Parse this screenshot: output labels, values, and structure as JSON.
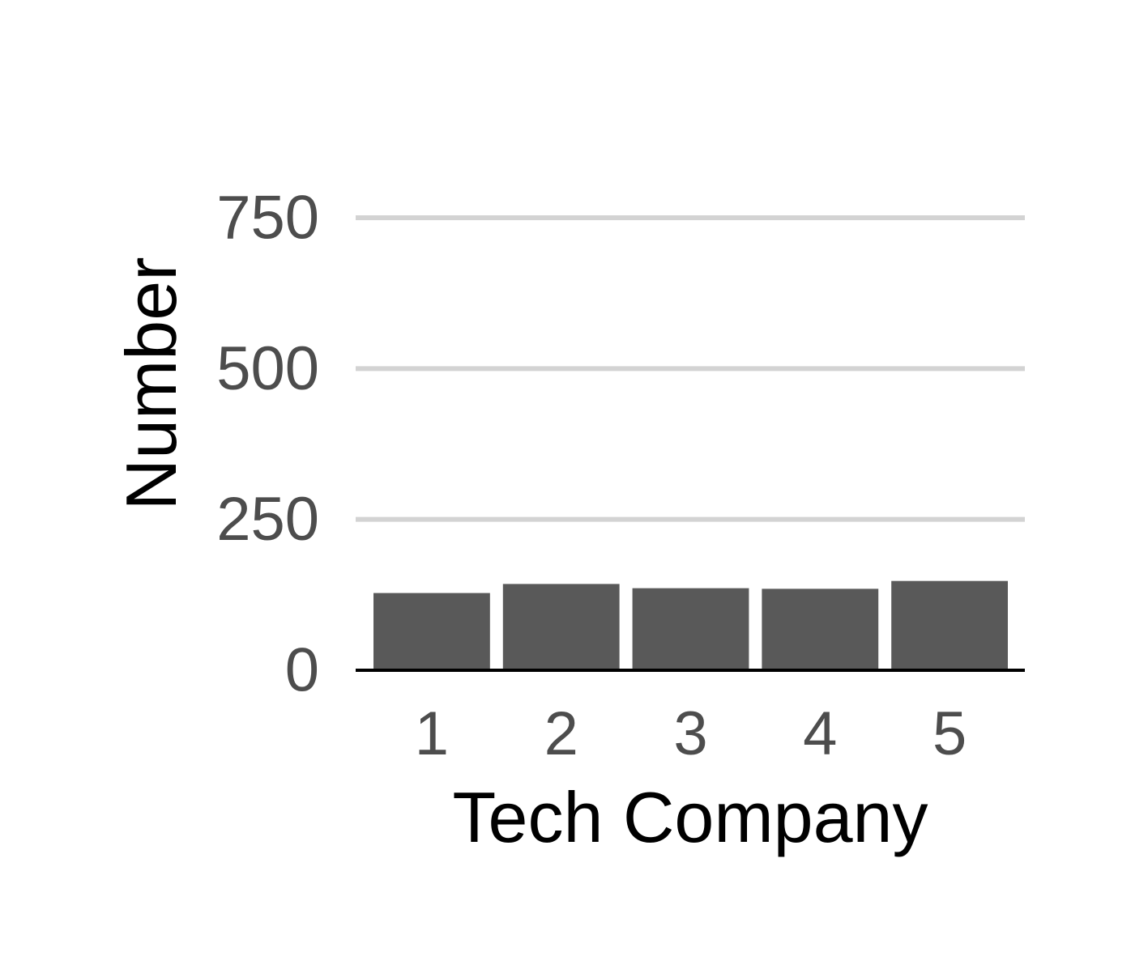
{
  "chart_data": {
    "type": "bar",
    "title": "",
    "xlabel": "Tech Company",
    "ylabel": "Number",
    "categories": [
      "1",
      "2",
      "3",
      "4",
      "5"
    ],
    "values": [
      128,
      143,
      136,
      135,
      148
    ],
    "ylim": [
      0,
      750
    ],
    "yticks": [
      0,
      250,
      500,
      750
    ],
    "grid": "horizontal",
    "legend": "none",
    "colors": {
      "bar": "#595959",
      "grid": "#d3d3d3",
      "axis": "#000000",
      "tick_text": "#4d4d4d",
      "title_text": "#000000"
    }
  }
}
